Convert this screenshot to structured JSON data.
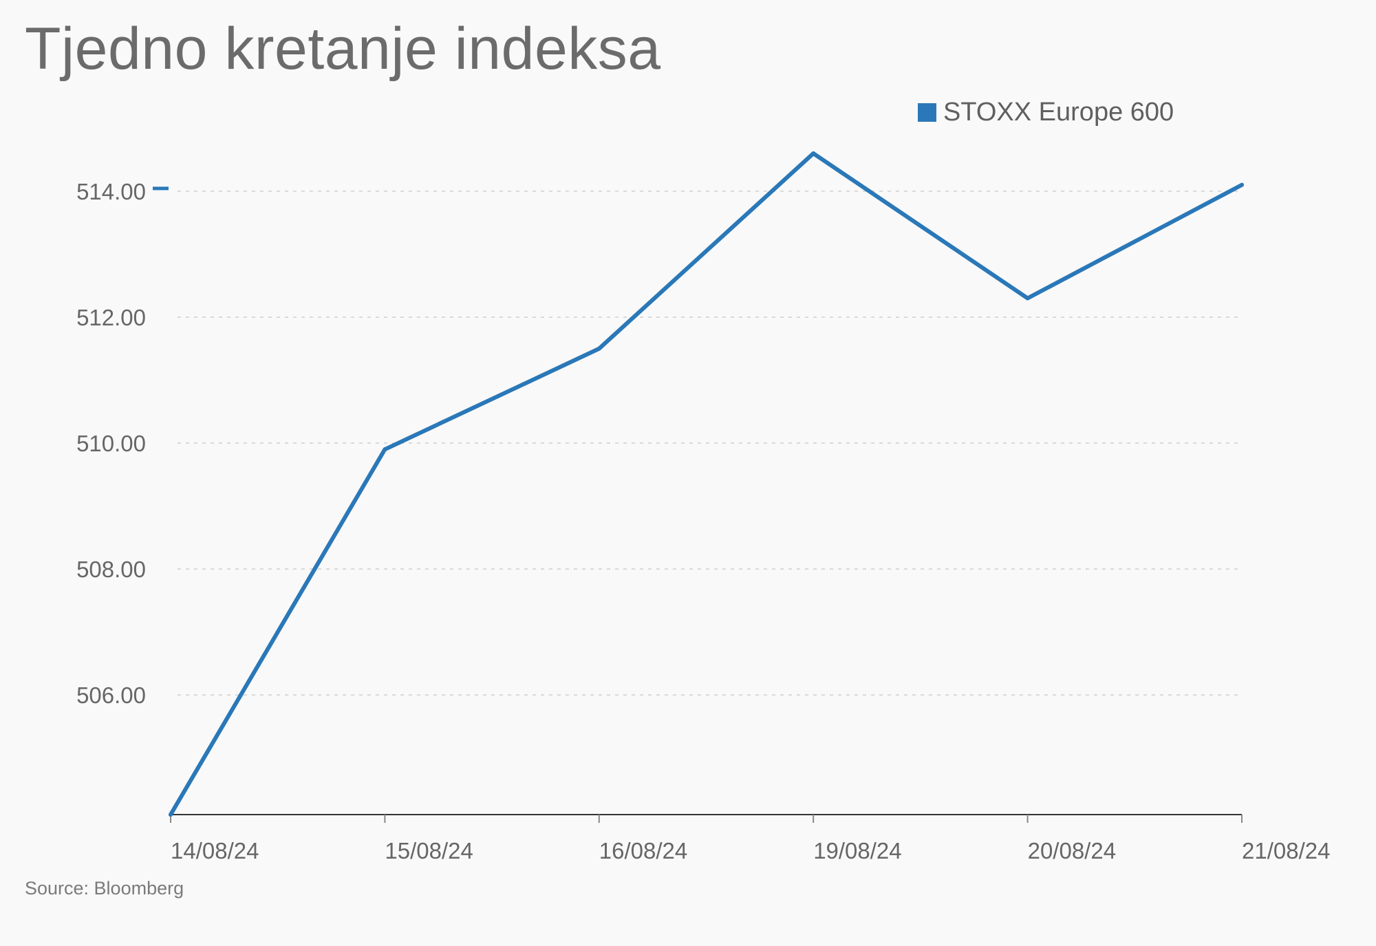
{
  "title": "Tjedno kretanje indeksa",
  "source": "Source: Bloomberg",
  "colors": {
    "series": "#2a78b8",
    "grid": "#d9d9d9",
    "axis": "#333333"
  },
  "chart_data": {
    "type": "line",
    "title": "Tjedno kretanje indeksa",
    "x": [
      "14/08/24",
      "15/08/24",
      "16/08/24",
      "19/08/24",
      "20/08/24",
      "21/08/24"
    ],
    "series": [
      {
        "name": "STOXX Europe 600",
        "values": [
          504.1,
          509.9,
          511.5,
          514.6,
          512.3,
          514.1
        ]
      }
    ],
    "yticks": [
      506.0,
      508.0,
      510.0,
      512.0,
      514.0
    ],
    "ytick_labels": [
      "506.00",
      "508.00",
      "510.00",
      "512.00",
      "514.00"
    ],
    "ylim": [
      504.1,
      514.6
    ],
    "grid": true,
    "legend": "top-right"
  }
}
